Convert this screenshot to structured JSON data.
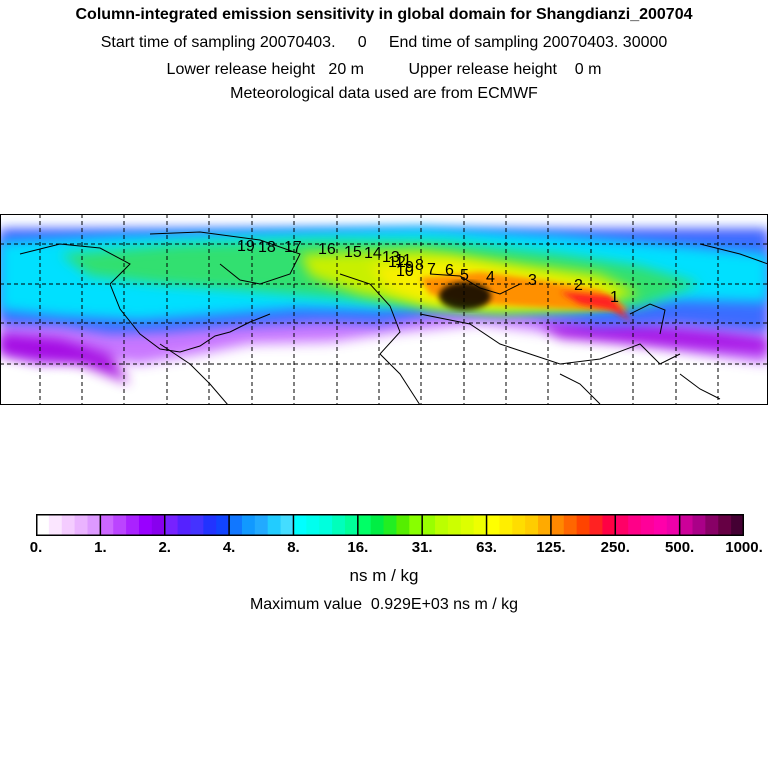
{
  "header": {
    "title": "Column-integrated emission sensitivity in global domain for Shangdianzi_200704",
    "sampling_line": "Start time of sampling 20070403.     0     End time of sampling 20070403. 30000",
    "height_line": "Lower release height   20 m          Upper release height    0 m",
    "met_line": "Meteorological data used are from ECMWF"
  },
  "map": {
    "trajectory_labels": [
      "1",
      "2",
      "3",
      "4",
      "5",
      "6",
      "7",
      "8",
      "9",
      "10",
      "11",
      "12",
      "13",
      "14",
      "15",
      "16",
      "17",
      "18",
      "19"
    ],
    "colors": {
      "background_low": "#ffffff",
      "purple": "#a000e0",
      "blue": "#3060ff",
      "cyan": "#00e8ff",
      "green": "#20e060",
      "yellow": "#f0f000",
      "orange": "#ff8c00",
      "red": "#ff2020",
      "black_core": "#000000"
    }
  },
  "legend": {
    "tick_labels": [
      "0.",
      "1.",
      "2.",
      "4.",
      "8.",
      "16.",
      "31.",
      "63.",
      "125.",
      "250.",
      "500.",
      "1000."
    ],
    "swatches": [
      "#ffffff",
      "#fbe6ff",
      "#f4ccff",
      "#eab3ff",
      "#dd99ff",
      "#cc66ff",
      "#bb44ff",
      "#aa22ff",
      "#9900ff",
      "#8800ee",
      "#7722ff",
      "#5522ff",
      "#4433ff",
      "#2233ff",
      "#1144ff",
      "#1177ff",
      "#1199ff",
      "#22aaff",
      "#22ccff",
      "#44ddff",
      "#00ffff",
      "#00ffee",
      "#00ffdd",
      "#00ffbb",
      "#00ff99",
      "#00ff66",
      "#00ee44",
      "#22ee22",
      "#55ee00",
      "#88ff00",
      "#99ff00",
      "#bbff00",
      "#ccff00",
      "#ddff00",
      "#eeff00",
      "#ffff00",
      "#ffee00",
      "#ffdd00",
      "#ffcc00",
      "#ffaa00",
      "#ff8800",
      "#ff6600",
      "#ff4400",
      "#ff2222",
      "#ff0044",
      "#ff0066",
      "#ff0088",
      "#ff0099",
      "#ff00aa",
      "#ee00aa",
      "#cc0099",
      "#aa0088",
      "#880066",
      "#660044",
      "#440033"
    ],
    "units": "ns m / kg",
    "max_value": "Maximum value  0.929E+03 ns m / kg"
  }
}
